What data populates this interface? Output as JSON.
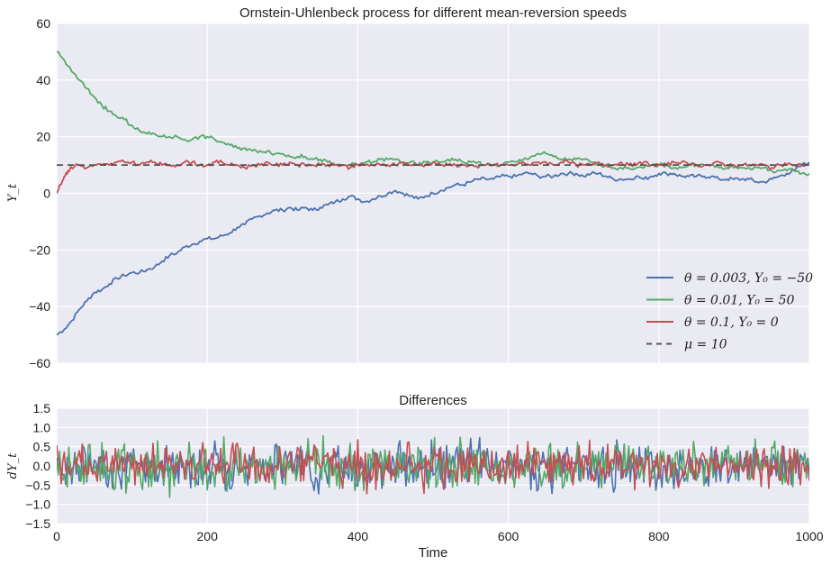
{
  "chart_data": [
    {
      "type": "line",
      "title": "Ornstein-Uhlenbeck process for different mean-reversion speeds",
      "xlabel": "",
      "ylabel": "Y_t",
      "xlim": [
        0,
        1000
      ],
      "ylim": [
        -60,
        60
      ],
      "xticks": [
        "0",
        "200",
        "400",
        "600",
        "800",
        "1000"
      ],
      "yticks": [
        "-60",
        "-40",
        "-20",
        "0",
        "20",
        "40",
        "60"
      ],
      "grid": true,
      "legend": "bottom-right",
      "series": [
        {
          "name": "θ = 0.003, Y₀ = −50",
          "color": "#4c72b0",
          "x": [
            0,
            10,
            20,
            30,
            40,
            50,
            60,
            70,
            80,
            90,
            100,
            110,
            120,
            130,
            140,
            150,
            160,
            170,
            180,
            190,
            200,
            210,
            220,
            230,
            240,
            250,
            260,
            270,
            280,
            290,
            300,
            310,
            320,
            330,
            340,
            350,
            360,
            370,
            380,
            390,
            400,
            410,
            420,
            430,
            440,
            450,
            460,
            470,
            480,
            490,
            500,
            510,
            520,
            530,
            540,
            550,
            560,
            570,
            580,
            590,
            600,
            610,
            620,
            630,
            640,
            650,
            660,
            670,
            680,
            690,
            700,
            710,
            720,
            730,
            740,
            750,
            760,
            770,
            780,
            790,
            800,
            810,
            820,
            830,
            840,
            850,
            860,
            870,
            880,
            890,
            900,
            910,
            920,
            930,
            940,
            950,
            960,
            970,
            980,
            990,
            1000
          ],
          "y": [
            -50,
            -48,
            -45,
            -41,
            -38,
            -35,
            -34,
            -32,
            -30,
            -29,
            -28,
            -28,
            -27,
            -26,
            -24,
            -22,
            -21,
            -19,
            -18,
            -17,
            -16,
            -16,
            -15,
            -14,
            -12,
            -11,
            -9,
            -8,
            -7,
            -6,
            -6,
            -5,
            -6,
            -5,
            -6,
            -5,
            -4,
            -3,
            -2,
            -1,
            -2,
            -3,
            -2,
            -1,
            0,
            1,
            0,
            -1,
            -2,
            -1,
            0,
            1,
            2,
            3,
            3,
            4,
            5,
            5,
            5,
            6,
            6,
            6,
            7,
            7,
            6,
            6,
            6,
            7,
            7,
            7,
            6,
            7,
            7,
            6,
            5,
            5,
            5,
            6,
            5,
            6,
            7,
            7,
            7,
            6,
            6,
            6,
            6,
            6,
            5,
            5,
            5,
            5,
            5,
            4,
            4,
            5,
            6,
            7,
            8,
            10,
            11
          ]
        },
        {
          "name": "θ = 0.01, Y₀ = 50",
          "color": "#55a868",
          "x": [
            0,
            10,
            20,
            30,
            40,
            50,
            60,
            70,
            80,
            90,
            100,
            110,
            120,
            130,
            140,
            150,
            160,
            170,
            180,
            190,
            200,
            210,
            220,
            230,
            240,
            250,
            260,
            270,
            280,
            290,
            300,
            310,
            320,
            330,
            340,
            350,
            360,
            370,
            380,
            390,
            400,
            410,
            420,
            430,
            440,
            450,
            460,
            470,
            480,
            490,
            500,
            510,
            520,
            530,
            540,
            550,
            560,
            570,
            580,
            590,
            600,
            610,
            620,
            630,
            640,
            650,
            660,
            670,
            680,
            690,
            700,
            710,
            720,
            730,
            740,
            750,
            760,
            770,
            780,
            790,
            800,
            810,
            820,
            830,
            840,
            850,
            860,
            870,
            880,
            890,
            900,
            910,
            920,
            930,
            940,
            950,
            960,
            970,
            980,
            990,
            1000
          ],
          "y": [
            50,
            47,
            43,
            40,
            37,
            34,
            31,
            29,
            27,
            26,
            24,
            22,
            21,
            21,
            20,
            20,
            20,
            19,
            19,
            20,
            20,
            19,
            18,
            17,
            16,
            16,
            15,
            15,
            15,
            14,
            14,
            13,
            13,
            13,
            12,
            12,
            11,
            10,
            10,
            10,
            10,
            11,
            11,
            12,
            12,
            12,
            11,
            11,
            10,
            11,
            11,
            11,
            12,
            12,
            11,
            11,
            11,
            10,
            10,
            10,
            11,
            11,
            12,
            13,
            14,
            14,
            13,
            12,
            12,
            12,
            12,
            11,
            10,
            10,
            9,
            9,
            9,
            9,
            9,
            10,
            10,
            10,
            9,
            9,
            10,
            10,
            10,
            10,
            9,
            9,
            9,
            9,
            9,
            9,
            9,
            8,
            8,
            8,
            8,
            7,
            7
          ]
        },
        {
          "name": "θ = 0.1, Y₀ = 0",
          "color": "#c44e52",
          "x": [
            0,
            5,
            10,
            15,
            20,
            25,
            30,
            40,
            50,
            60,
            70,
            80,
            90,
            100,
            110,
            120,
            130,
            140,
            150,
            160,
            170,
            180,
            190,
            200,
            210,
            220,
            230,
            240,
            250,
            260,
            270,
            280,
            290,
            300,
            310,
            320,
            330,
            340,
            350,
            360,
            370,
            380,
            390,
            400,
            410,
            420,
            430,
            440,
            450,
            460,
            470,
            480,
            490,
            500,
            510,
            520,
            530,
            540,
            550,
            560,
            570,
            580,
            590,
            600,
            610,
            620,
            630,
            640,
            650,
            660,
            670,
            680,
            690,
            700,
            710,
            720,
            730,
            740,
            750,
            760,
            770,
            780,
            790,
            800,
            810,
            820,
            830,
            840,
            850,
            860,
            870,
            880,
            890,
            900,
            910,
            920,
            930,
            940,
            950,
            960,
            970,
            980,
            990,
            1000
          ],
          "y": [
            0,
            3,
            6,
            8,
            9,
            10,
            10,
            9,
            10,
            10,
            10,
            11,
            11,
            11,
            10,
            11,
            11,
            10,
            10,
            10,
            11,
            11,
            10,
            10,
            11,
            11,
            10,
            10,
            9,
            10,
            10,
            11,
            10,
            10,
            11,
            10,
            10,
            10,
            10,
            10,
            10,
            10,
            9,
            10,
            10,
            10,
            10,
            10,
            10,
            11,
            10,
            10,
            10,
            11,
            10,
            10,
            10,
            10,
            10,
            9,
            10,
            10,
            10,
            10,
            10,
            11,
            10,
            11,
            11,
            10,
            11,
            11,
            10,
            10,
            10,
            11,
            10,
            10,
            11,
            10,
            10,
            11,
            10,
            10,
            10,
            11,
            11,
            10,
            10,
            10,
            10,
            11,
            10,
            10,
            10,
            10,
            10,
            10,
            9,
            10,
            10,
            10,
            10,
            10
          ]
        },
        {
          "name": "μ = 10",
          "color": "#555555",
          "dashed": true,
          "x": [
            0,
            1000
          ],
          "y": [
            10,
            10
          ]
        }
      ]
    },
    {
      "type": "line",
      "title": "Differences",
      "xlabel": "Time",
      "ylabel": "dY_t",
      "xlim": [
        0,
        1000
      ],
      "ylim": [
        -1.5,
        1.5
      ],
      "xticks": [
        "0",
        "200",
        "400",
        "600",
        "800",
        "1000"
      ],
      "yticks": [
        "-1.5",
        "-1.0",
        "-0.5",
        "0.0",
        "0.5",
        "1.0",
        "1.5"
      ],
      "grid": true,
      "series": [
        {
          "name": "",
          "color": "#4c72b0",
          "noise_amplitude": 0.5,
          "x": [
            0,
            1000
          ],
          "y": [
            -1.1,
            1.2
          ]
        },
        {
          "name": "",
          "color": "#55a868",
          "noise_amplitude": 0.55,
          "x": [
            0,
            1000
          ],
          "y": [
            -1.2,
            1.0
          ]
        },
        {
          "name": "",
          "color": "#c44e52",
          "noise_amplitude": 0.5,
          "x": [
            0,
            1000
          ],
          "y": [
            -1.15,
            0.95
          ]
        }
      ]
    }
  ]
}
